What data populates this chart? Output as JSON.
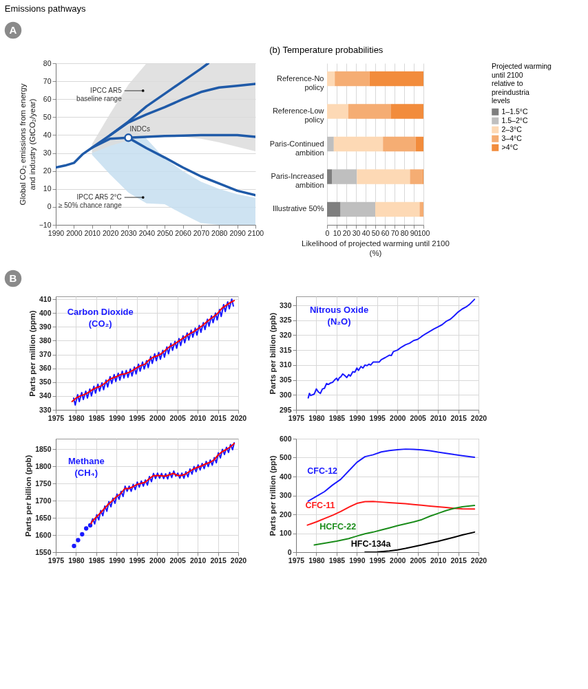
{
  "chart_data": [
    {
      "type": "line",
      "title": "Emissions pathways",
      "ylabel": "Global CO₂ emissions from energy and industry (GtCO₂/year)",
      "xlim": [
        1990,
        2100
      ],
      "ylim": [
        -10,
        80
      ],
      "xticks": [
        1990,
        2000,
        2010,
        2020,
        2030,
        2040,
        2050,
        2060,
        2070,
        2080,
        2090,
        2100
      ],
      "yticks": [
        -10,
        0,
        10,
        20,
        30,
        40,
        50,
        60,
        70,
        80
      ],
      "grid": "y",
      "series": [
        {
          "type": "line",
          "color": "#1f5aa8",
          "x": [
            1990,
            1995,
            2000,
            2005,
            2010,
            2020,
            2030,
            2040,
            2050,
            2060,
            2070,
            2080,
            2090,
            2100
          ],
          "values": [
            22,
            23,
            24.5,
            29.5,
            33,
            38,
            38.5,
            39,
            39.5,
            39.7,
            40,
            40,
            40,
            39
          ],
          "lower": [
            null,
            null,
            null,
            null,
            29,
            18,
            8,
            2,
            1.5,
            -4,
            -9,
            -10,
            -10,
            -10
          ],
          "upper": [
            null,
            null,
            null,
            null,
            33,
            40,
            45,
            38,
            27,
            20,
            14,
            10,
            7,
            5
          ]
        },
        {
          "type": "line",
          "color": "#1f5aa8",
          "x": [
            2010,
            2020,
            2030,
            2040,
            2050,
            2060,
            2070,
            2080,
            2090,
            2100
          ],
          "values": [
            33,
            40,
            47,
            51.5,
            55.5,
            60,
            64,
            66.5,
            67.5,
            68.5
          ],
          "lower": [
            30,
            34,
            37,
            39,
            39.5,
            39,
            38,
            36,
            33.5,
            31
          ],
          "upper": [
            35,
            52,
            68,
            80,
            80,
            80,
            80,
            80,
            80,
            80
          ]
        },
        {
          "type": "line",
          "color": "#1f5aa8",
          "x": [
            2020,
            2030,
            2040,
            2050,
            2060,
            2070,
            2074
          ],
          "values": [
            40,
            47.5,
            56,
            63,
            70,
            77,
            80
          ]
        },
        {
          "type": "line",
          "color": "#1f5aa8",
          "x": [
            2030,
            2040,
            2050,
            2060,
            2070,
            2080,
            2090,
            2100
          ],
          "values": [
            38.5,
            32.7,
            27.5,
            22,
            17,
            13,
            9,
            6.5
          ]
        },
        {
          "type": "scatter",
          "color": "#1f5aa8",
          "marker": "circle",
          "x": [
            2030
          ],
          "values": [
            38.5
          ]
        }
      ],
      "annotations": [
        "IPCC AR5\nbaseline range",
        "IPCC AR5 2°C\n≥ 50% chance range",
        {
          "text": "INDCs",
          "x": 2030,
          "y": 38.5
        },
        "A"
      ]
    },
    {
      "type": "bar",
      "orientation": "horizontal",
      "stacked": true,
      "title": "(b) Temperature probabilities",
      "xlabel": "Likelihood of projected warming until 2100 (%)",
      "categories": [
        "Reference-No policy",
        "Reference-Low policy",
        "Paris-Continued ambition",
        "Paris-Increased ambition",
        "Illustrative 50%"
      ],
      "xlim": [
        0,
        100
      ],
      "xticks": [
        0,
        10,
        20,
        30,
        40,
        50,
        60,
        70,
        80,
        90,
        100
      ],
      "grid": "x",
      "legend": "right",
      "legend_title": "Projected warming until 2100 relative to preindustria levels",
      "series": [
        {
          "name": "1–1.5°C",
          "color": "#7f7f7f",
          "values": [
            0,
            0,
            0,
            5,
            14
          ]
        },
        {
          "name": "1.5–2°C",
          "color": "#bfbfbf",
          "values": [
            0,
            0,
            7,
            26,
            36
          ]
        },
        {
          "name": "2–3°C",
          "color": "#fdd9b5",
          "values": [
            8,
            22,
            51,
            55,
            46
          ]
        },
        {
          "name": "3–4°C",
          "color": "#f5ad73",
          "values": [
            36,
            44,
            34,
            13,
            4
          ]
        },
        {
          "name": ">4°C",
          "color": "#f28c3c",
          "values": [
            56,
            34,
            8,
            1,
            0
          ]
        }
      ]
    },
    {
      "type": "line",
      "title": "Carbon Dioxide (CO₂)",
      "ylabel": "Parts per million (ppm)",
      "xlim": [
        1975,
        2020
      ],
      "ylim": [
        330,
        412
      ],
      "xticks": [
        1975,
        1980,
        1985,
        1990,
        1995,
        2000,
        2005,
        2010,
        2015,
        2020
      ],
      "yticks": [
        330,
        340,
        350,
        360,
        370,
        380,
        390,
        400,
        410
      ],
      "grid": true,
      "annotations": [
        "B"
      ],
      "series": [
        {
          "color": "#1a1aff",
          "x": [
            1979.4,
            1979.8,
            1980.4,
            1980.8,
            1981.4,
            1981.8,
            1982.4,
            1982.8,
            1983.4,
            1983.8,
            1984.4,
            1984.8,
            1985.4,
            1985.8,
            1986.4,
            1986.8,
            1987.4,
            1987.8,
            1988.4,
            1988.8,
            1989.4,
            1989.8,
            1990.4,
            1990.8,
            1991.4,
            1991.8,
            1992.4,
            1992.8,
            1993.4,
            1993.8,
            1994.4,
            1994.8,
            1995.4,
            1995.8,
            1996.4,
            1996.8,
            1997.4,
            1997.8,
            1998.4,
            1998.8,
            1999.4,
            1999.8,
            2000.4,
            2000.8,
            2001.4,
            2001.8,
            2002.4,
            2002.8,
            2003.4,
            2003.8,
            2004.4,
            2004.8,
            2005.4,
            2005.8,
            2006.4,
            2006.8,
            2007.4,
            2007.8,
            2008.4,
            2008.8,
            2009.4,
            2009.8,
            2010.4,
            2010.8,
            2011.4,
            2011.8,
            2012.4,
            2012.8,
            2013.4,
            2013.8,
            2014.4,
            2014.8,
            2015.4,
            2015.8,
            2016.4,
            2016.8,
            2017.4,
            2017.8,
            2018.4,
            2018.8
          ],
          "values": [
            338.5,
            333.5,
            341,
            336,
            342.5,
            337.5,
            343.5,
            338.5,
            345,
            340,
            347,
            342,
            348.5,
            343.5,
            349.5,
            344.5,
            351.5,
            346.5,
            354,
            349,
            355.5,
            350.5,
            356.5,
            351.5,
            358,
            353,
            358.5,
            353.5,
            359.5,
            354.5,
            361,
            356,
            363,
            358,
            364.5,
            359.5,
            365.5,
            360.5,
            368.5,
            363.5,
            370.5,
            365.5,
            371.5,
            366.5,
            373,
            368,
            375.5,
            370.5,
            378,
            373,
            379.5,
            374.5,
            381.5,
            376.5,
            383.5,
            378.5,
            385.5,
            380.5,
            387.5,
            382.5,
            389,
            384,
            391,
            386,
            393,
            388,
            395.5,
            390.5,
            398,
            393,
            400,
            395,
            402.5,
            397.5,
            406,
            401,
            408,
            403,
            410,
            405
          ]
        },
        {
          "color": "#ff0000",
          "x": [
            1979,
            1980,
            1981,
            1982,
            1983,
            1984,
            1985,
            1986,
            1987,
            1988,
            1989,
            1990,
            1991,
            1992,
            1993,
            1994,
            1995,
            1996,
            1997,
            1998,
            1999,
            2000,
            2001,
            2002,
            2003,
            2004,
            2005,
            2006,
            2007,
            2008,
            2009,
            2010,
            2011,
            2012,
            2013,
            2014,
            2015,
            2016,
            2017,
            2018,
            2019
          ],
          "values": [
            336,
            338.5,
            340,
            341,
            342.5,
            344.5,
            346,
            347,
            349,
            351.5,
            353,
            354,
            355.5,
            356,
            357,
            358.5,
            360.5,
            362,
            363,
            366,
            368,
            369,
            370.5,
            373,
            375.5,
            377,
            379,
            381,
            383,
            385,
            386.5,
            388.5,
            390.5,
            393,
            395.5,
            397.5,
            400,
            403.5,
            405.5,
            407.5,
            409
          ]
        }
      ]
    },
    {
      "type": "line",
      "title": "Nitrous Oxide (N₂O)",
      "ylabel": "Parts per billion (ppb)",
      "xlim": [
        1975,
        2020
      ],
      "ylim": [
        295,
        333
      ],
      "xticks": [
        1975,
        1980,
        1985,
        1990,
        1995,
        2000,
        2005,
        2010,
        2015,
        2020
      ],
      "yticks": [
        295,
        300,
        305,
        310,
        315,
        320,
        325,
        330
      ],
      "grid": true,
      "series": [
        {
          "color": "#1a1aff",
          "x": [
            1978,
            1978.3,
            1978.6,
            1979,
            1979.5,
            1980,
            1980.5,
            1981,
            1981.5,
            1982,
            1982.5,
            1983,
            1983.5,
            1984,
            1984.5,
            1985,
            1985.3,
            1985.7,
            1986,
            1986.5,
            1987,
            1987.5,
            1988,
            1988.4,
            1989,
            1989.5,
            1990,
            1990.4,
            1991,
            1991.5,
            1992,
            1992.5,
            1993,
            1993.4,
            1994,
            1995,
            1995.5,
            1996,
            1997,
            1998,
            1998.5,
            1999,
            2000,
            2001,
            2002,
            2003,
            2004,
            2005,
            2006,
            2007,
            2008,
            2009,
            2010,
            2011,
            2012,
            2013,
            2014,
            2015,
            2016,
            2017,
            2018,
            2019
          ],
          "values": [
            299,
            300.5,
            299.8,
            300,
            300.3,
            302,
            301,
            300.5,
            302,
            302.2,
            303.8,
            303.5,
            304,
            304.2,
            305,
            305.6,
            304.8,
            305.8,
            306,
            307,
            306.5,
            305.8,
            306.8,
            306.3,
            307.8,
            307.6,
            309,
            308.2,
            309.5,
            309,
            310,
            309.8,
            310.3,
            310,
            311,
            311,
            311,
            311.8,
            312.5,
            313.3,
            313.2,
            314.5,
            315,
            316,
            316.8,
            317.3,
            318.2,
            318.6,
            319.6,
            320.5,
            321.3,
            322.1,
            322.8,
            323.5,
            324.6,
            325.3,
            326.5,
            327.8,
            328.8,
            329.5,
            330.6,
            332
          ]
        }
      ]
    },
    {
      "type": "line",
      "title": "Methane (CH₄)",
      "ylabel": "Parts per billion (ppb)",
      "xlim": [
        1975,
        2020
      ],
      "ylim": [
        1550,
        1880
      ],
      "xticks": [
        1975,
        1980,
        1985,
        1990,
        1995,
        2000,
        2005,
        2010,
        2015,
        2020
      ],
      "yticks": [
        1550,
        1600,
        1650,
        1700,
        1750,
        1800,
        1850
      ],
      "grid": true,
      "series": [
        {
          "type": "scatter",
          "marker": "circle",
          "color": "#1a1aff",
          "x": [
            1979.5,
            1980.5,
            1981.5,
            1982.5,
            1983.5
          ],
          "values": [
            1568,
            1585,
            1602,
            1619,
            1628
          ]
        },
        {
          "color": "#1a1aff",
          "x": [
            1983.6,
            1984.1,
            1984.6,
            1985.1,
            1985.6,
            1986.1,
            1986.6,
            1987.1,
            1987.6,
            1988.1,
            1988.6,
            1989.1,
            1989.6,
            1990.1,
            1990.6,
            1991.1,
            1991.6,
            1992.1,
            1992.6,
            1993.1,
            1993.6,
            1994.1,
            1994.6,
            1995.1,
            1995.6,
            1996.1,
            1996.6,
            1997.1,
            1997.6,
            1998.1,
            1998.6,
            1999.1,
            1999.6,
            2000.1,
            2000.6,
            2001.1,
            2001.6,
            2002.1,
            2002.6,
            2003.1,
            2003.6,
            2004.1,
            2004.6,
            2005.1,
            2005.6,
            2006.1,
            2006.6,
            2007.1,
            2007.6,
            2008.1,
            2008.6,
            2009.1,
            2009.6,
            2010.1,
            2010.6,
            2011.1,
            2011.6,
            2012.1,
            2012.6,
            2013.1,
            2013.6,
            2014.1,
            2014.6,
            2015.1,
            2015.6,
            2016.1,
            2016.6,
            2017.1,
            2017.6,
            2018.1,
            2018.6,
            2019
          ],
          "values": [
            1630,
            1647,
            1632,
            1659,
            1644,
            1671,
            1656,
            1684,
            1669,
            1697,
            1682,
            1707,
            1692,
            1719,
            1704,
            1727,
            1712,
            1742,
            1727,
            1742,
            1727,
            1747,
            1732,
            1754,
            1739,
            1757,
            1742,
            1760,
            1745,
            1770,
            1755,
            1779,
            1764,
            1780,
            1765,
            1779,
            1764,
            1778,
            1763,
            1782,
            1767,
            1786,
            1771,
            1780,
            1765,
            1780,
            1765,
            1784,
            1769,
            1792,
            1777,
            1799,
            1784,
            1804,
            1789,
            1808,
            1793,
            1814,
            1799,
            1818,
            1803,
            1825,
            1810,
            1839,
            1824,
            1849,
            1834,
            1855,
            1840,
            1863,
            1848,
            1868
          ]
        },
        {
          "color": "#ff0000",
          "x": [
            1983.7,
            1984,
            1985,
            1986,
            1987,
            1988,
            1989,
            1990,
            1991,
            1992,
            1993,
            1994,
            1995,
            1996,
            1997,
            1998,
            1999,
            2000,
            2001,
            2002,
            2003,
            2004,
            2005,
            2006,
            2007,
            2008,
            2009,
            2010,
            2011,
            2012,
            2013,
            2014,
            2015,
            2016,
            2017,
            2018,
            2019
          ],
          "values": [
            1633,
            1640,
            1652,
            1664,
            1677,
            1690,
            1700,
            1712,
            1720,
            1735,
            1735,
            1740,
            1747,
            1750,
            1753,
            1763,
            1772,
            1773,
            1772,
            1771,
            1775,
            1779,
            1773,
            1773,
            1777,
            1785,
            1792,
            1797,
            1801,
            1807,
            1811,
            1818,
            1832,
            1842,
            1848,
            1856,
            1866
          ]
        }
      ]
    },
    {
      "type": "line",
      "ylabel": "Parts per trillion (ppt)",
      "xlim": [
        1975,
        2020
      ],
      "ylim": [
        0,
        600
      ],
      "xticks": [
        1975,
        1980,
        1985,
        1990,
        1995,
        2000,
        2005,
        2010,
        2015,
        2020
      ],
      "yticks": [
        0,
        100,
        200,
        300,
        400,
        500,
        600
      ],
      "grid": true,
      "series": [
        {
          "name": "CFC-12",
          "color": "#1a1aff",
          "x": [
            1978,
            1980,
            1982,
            1984,
            1986,
            1988,
            1990,
            1992,
            1994,
            1996,
            1998,
            2000,
            2002,
            2004,
            2006,
            2008,
            2010,
            2012,
            2014,
            2016,
            2019
          ],
          "values": [
            270,
            295,
            320,
            355,
            385,
            430,
            475,
            505,
            515,
            530,
            537,
            542,
            545,
            544,
            541,
            536,
            529,
            523,
            516,
            510,
            502
          ]
        },
        {
          "name": "CFC-11",
          "color": "#ff1a1a",
          "x": [
            1977.8,
            1980,
            1982,
            1984,
            1986,
            1988,
            1990,
            1992,
            1994,
            1996,
            1998,
            2000,
            2002,
            2004,
            2006,
            2008,
            2010,
            2012,
            2014,
            2016,
            2019
          ],
          "values": [
            143,
            160,
            178,
            195,
            215,
            238,
            258,
            267,
            268,
            265,
            262,
            259,
            256,
            252,
            248,
            244,
            240,
            236,
            232,
            229,
            228
          ]
        },
        {
          "name": "HCFC-22",
          "color": "#1a8c1a",
          "x": [
            1979.5,
            1982,
            1985,
            1988,
            1990,
            1992,
            1994,
            1996,
            1998,
            2000,
            2002,
            2004,
            2006,
            2008,
            2010,
            2012,
            2014,
            2016,
            2019
          ],
          "values": [
            38,
            47,
            58,
            72,
            85,
            97,
            106,
            117,
            128,
            140,
            150,
            160,
            172,
            190,
            205,
            220,
            232,
            240,
            247
          ]
        },
        {
          "name": "HFC-134a",
          "color": "#000000",
          "x": [
            1992,
            1995,
            1998,
            2000,
            2002,
            2004,
            2006,
            2008,
            2010,
            2012,
            2014,
            2016,
            2019
          ],
          "values": [
            0,
            1,
            6,
            12,
            20,
            29,
            38,
            48,
            57,
            68,
            79,
            91,
            106
          ]
        }
      ]
    }
  ]
}
